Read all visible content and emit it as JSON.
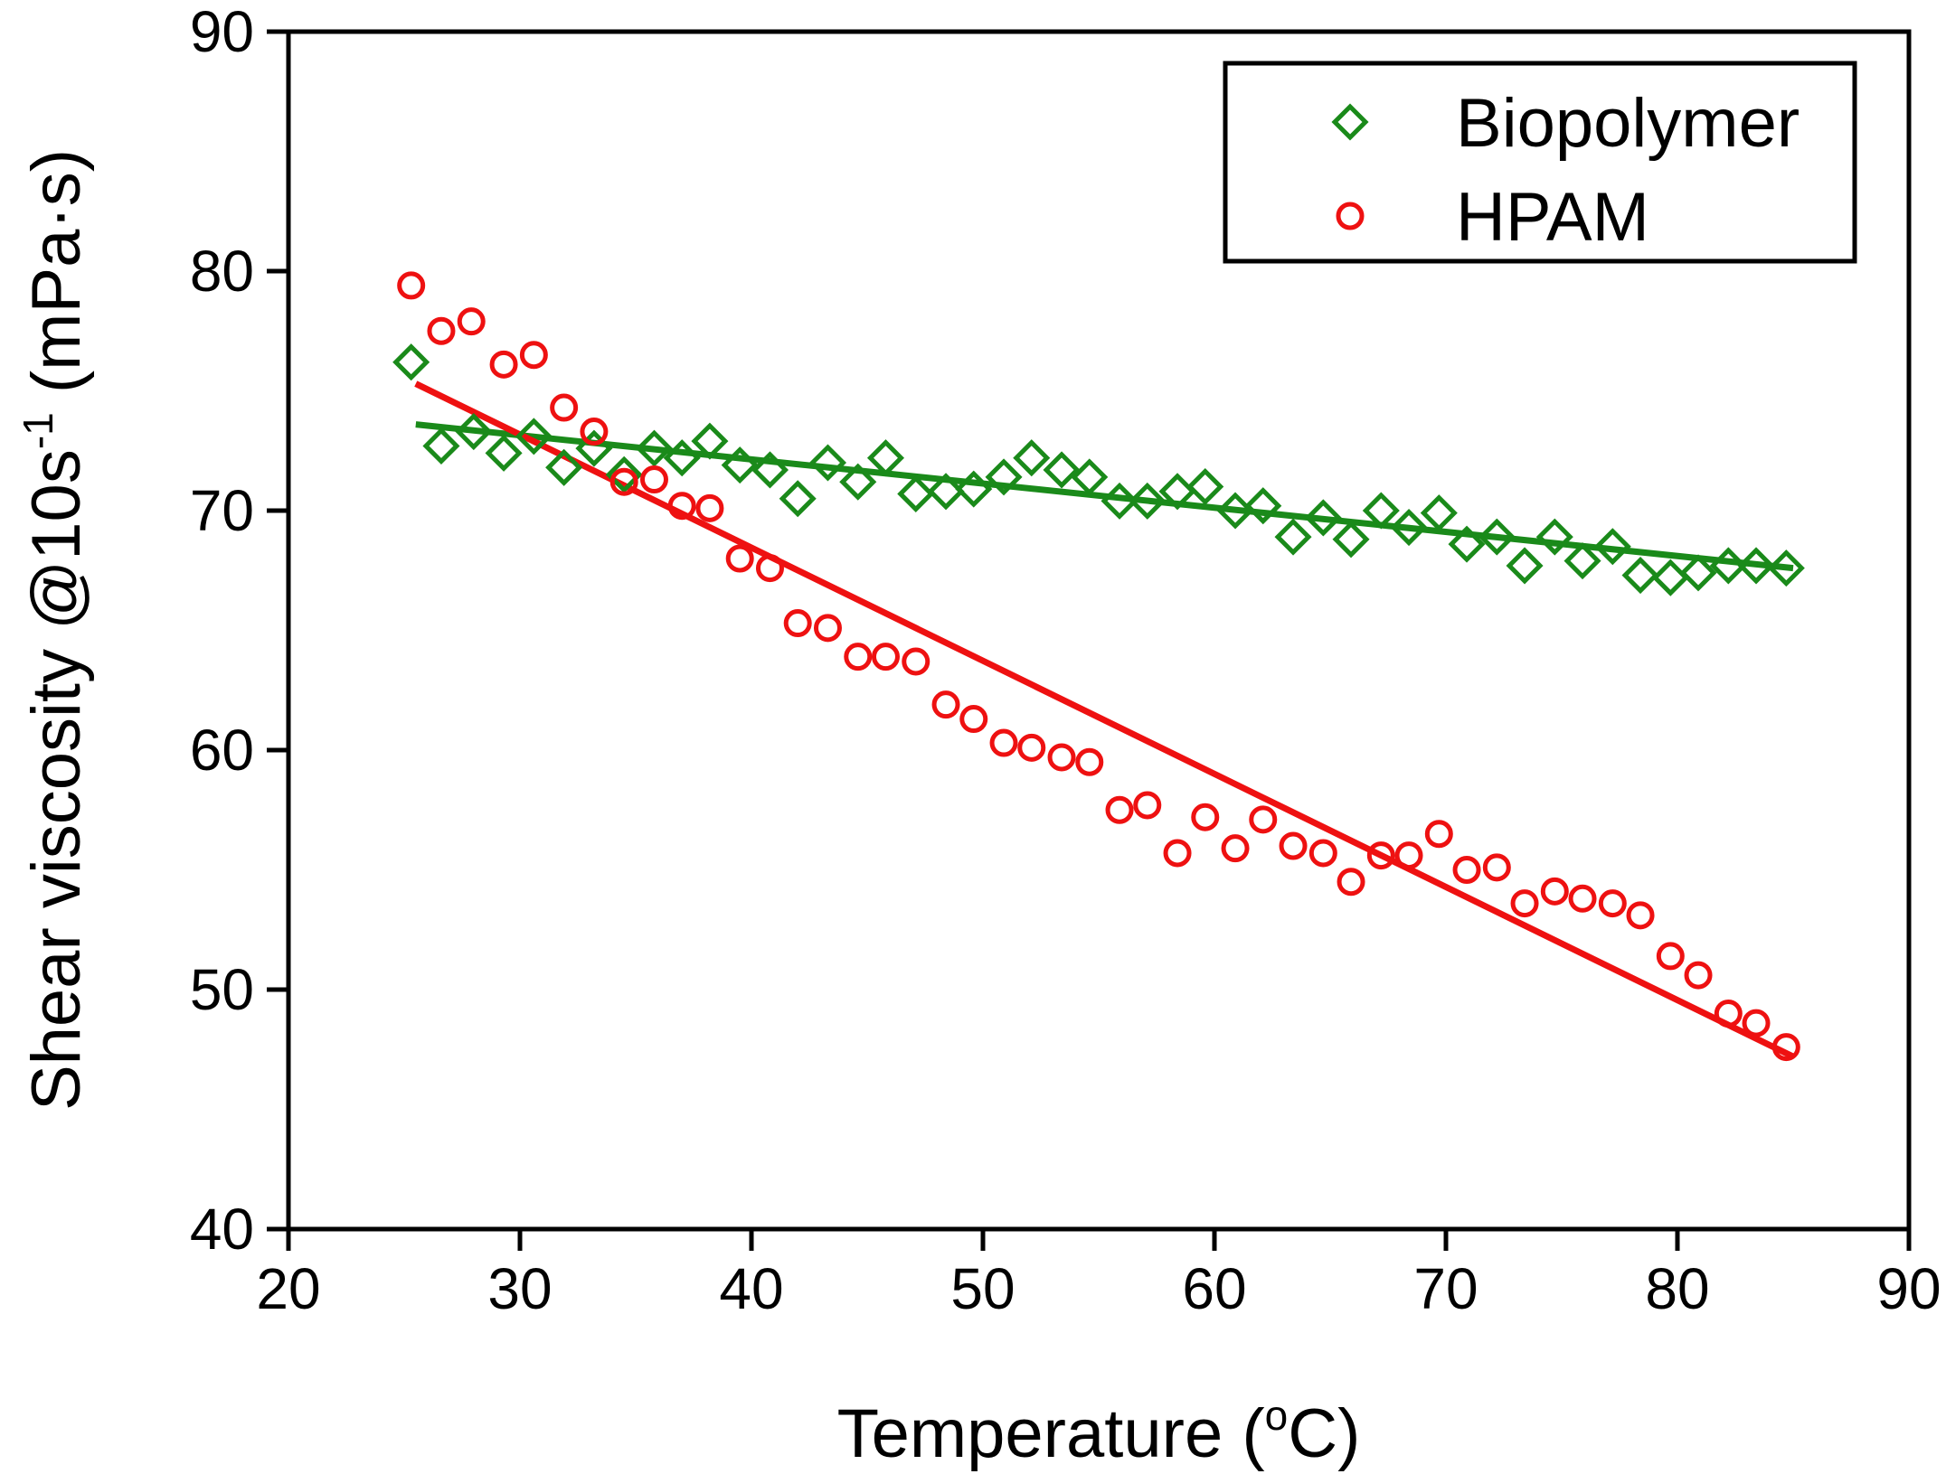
{
  "chart_data": {
    "type": "scatter",
    "xlabel": "Temperature (",
    "xlabel_degree": "o",
    "xlabel_unit": "C)",
    "ylabel": "Shear viscosity @10s",
    "ylabel_superscript": "-1",
    "ylabel_unit": " (mPa·s)",
    "xlim": [
      20,
      90
    ],
    "ylim": [
      40,
      90
    ],
    "xticks": [
      "20",
      "30",
      "40",
      "50",
      "60",
      "70",
      "80",
      "90"
    ],
    "yticks": [
      "40",
      "50",
      "60",
      "70",
      "80",
      "90"
    ],
    "grid": false,
    "legend_position": "top-right",
    "series": [
      {
        "name": "Biopolymer",
        "marker": "diamond",
        "color": "#1a8a1a",
        "fit_line": [
          [
            25.5,
            73.6
          ],
          [
            85,
            67.6
          ]
        ],
        "x": [
          25.3,
          26.6,
          28.0,
          29.3,
          30.6,
          31.9,
          33.2,
          34.5,
          35.8,
          37.0,
          38.2,
          39.5,
          40.8,
          42.0,
          43.3,
          44.6,
          45.8,
          47.1,
          48.4,
          49.6,
          50.9,
          52.1,
          53.4,
          54.6,
          55.9,
          57.1,
          58.4,
          59.6,
          60.9,
          62.1,
          63.4,
          64.7,
          65.9,
          67.2,
          68.4,
          69.7,
          70.9,
          72.2,
          73.4,
          74.7,
          75.9,
          77.2,
          78.4,
          79.7,
          80.9,
          82.2,
          83.4,
          84.7
        ],
        "y": [
          76.2,
          72.7,
          73.3,
          72.4,
          73.1,
          71.8,
          72.6,
          71.5,
          72.6,
          72.2,
          72.9,
          71.9,
          71.7,
          70.5,
          72.0,
          71.2,
          72.2,
          70.7,
          70.8,
          70.9,
          71.4,
          72.2,
          71.7,
          71.4,
          70.4,
          70.4,
          70.8,
          71.0,
          70.0,
          70.2,
          68.9,
          69.7,
          68.8,
          70.0,
          69.3,
          69.9,
          68.6,
          68.9,
          67.7,
          68.9,
          67.9,
          68.5,
          67.3,
          67.2,
          67.4,
          67.7,
          67.7,
          67.6
        ]
      },
      {
        "name": "HPAM",
        "marker": "circle",
        "color": "#ee1111",
        "fit_line": [
          [
            25.5,
            75.3
          ],
          [
            85,
            47.2
          ]
        ],
        "x": [
          25.3,
          26.6,
          27.9,
          29.3,
          30.6,
          31.9,
          33.2,
          34.5,
          35.8,
          37.0,
          38.2,
          39.5,
          40.8,
          42.0,
          43.3,
          44.6,
          45.8,
          47.1,
          48.4,
          49.6,
          50.9,
          52.1,
          53.4,
          54.6,
          55.9,
          57.1,
          58.4,
          59.6,
          60.9,
          62.1,
          63.4,
          64.7,
          65.9,
          67.2,
          68.4,
          69.7,
          70.9,
          72.2,
          73.4,
          74.7,
          75.9,
          77.2,
          78.4,
          79.7,
          80.9,
          82.2,
          83.4,
          84.7
        ],
        "y": [
          79.4,
          77.5,
          77.9,
          76.1,
          76.5,
          74.3,
          73.3,
          71.2,
          71.3,
          70.2,
          70.1,
          68.0,
          67.6,
          65.3,
          65.1,
          63.9,
          63.9,
          63.7,
          61.9,
          61.3,
          60.3,
          60.1,
          59.7,
          59.5,
          57.5,
          57.7,
          55.7,
          57.2,
          55.9,
          57.1,
          56.0,
          55.7,
          54.5,
          55.6,
          55.6,
          56.5,
          55.0,
          55.1,
          53.6,
          54.1,
          53.8,
          53.6,
          53.1,
          51.4,
          50.6,
          49.0,
          48.6,
          47.6
        ]
      }
    ]
  }
}
